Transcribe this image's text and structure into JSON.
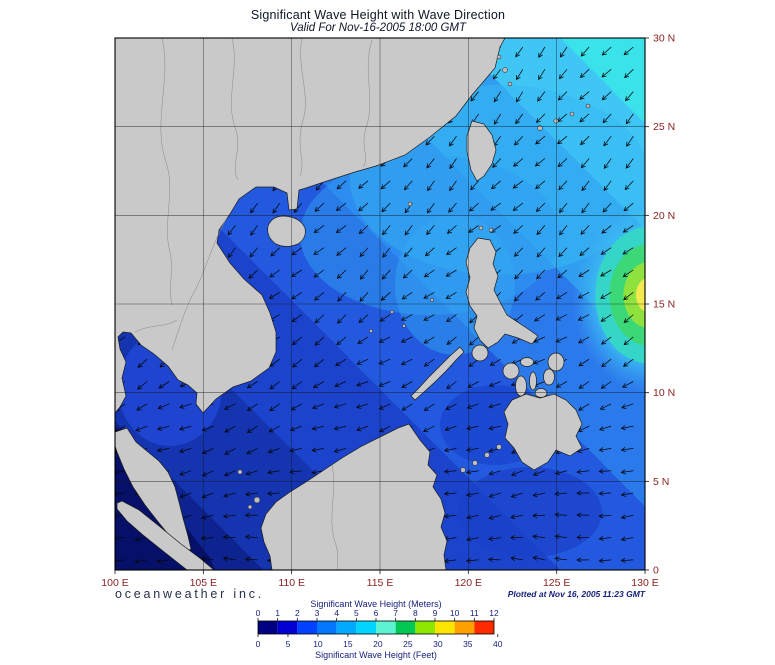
{
  "header": {
    "title": "Significant Wave Height with Wave Direction",
    "subtitle": "Valid For Nov-16-2005 18:00 GMT"
  },
  "map": {
    "lon_ticks": [
      "100 E",
      "105 E",
      "110 E",
      "115 E",
      "120 E",
      "125 E",
      "130 E"
    ],
    "lat_ticks": [
      "30 N",
      "25 N",
      "20 N",
      "15 N",
      "10 N",
      "5 N",
      "0"
    ],
    "extent": {
      "lon_min": 100,
      "lon_max": 130,
      "lat_min": 0,
      "lat_max": 30
    }
  },
  "footer": {
    "branding": "oceanweather inc.",
    "plotted": "Plotted at Nov 16, 2005 11:23 GMT"
  },
  "colorbar": {
    "meters_title": "Significant Wave Height (Meters)",
    "feet_title": "Significant Wave Height (Feet)",
    "meters_ticks": [
      "0",
      "1",
      "2",
      "3",
      "4",
      "5",
      "6",
      "7",
      "8",
      "9",
      "10",
      "11",
      "12"
    ],
    "feet_ticks": [
      "0",
      "5",
      "10",
      "15",
      "20",
      "25",
      "30",
      "35",
      "40"
    ],
    "cell_colors": [
      "#000082",
      "#0000d2",
      "#0042ff",
      "#0078ff",
      "#00aaff",
      "#00d4ff",
      "#5cf2d2",
      "#00c853",
      "#8ce600",
      "#ffe400",
      "#ffa000",
      "#ff2a00"
    ]
  },
  "chart_data": {
    "type": "map",
    "title": "Significant Wave Height with Wave Direction",
    "valid_time": "Nov-16-2005 18:00 GMT",
    "lon_range_deg_east": [
      100,
      130
    ],
    "lat_range_deg_north": [
      0,
      30
    ],
    "wave_height_scale_meters": [
      0,
      12
    ],
    "wave_height_scale_feet": [
      0,
      40
    ]
  }
}
